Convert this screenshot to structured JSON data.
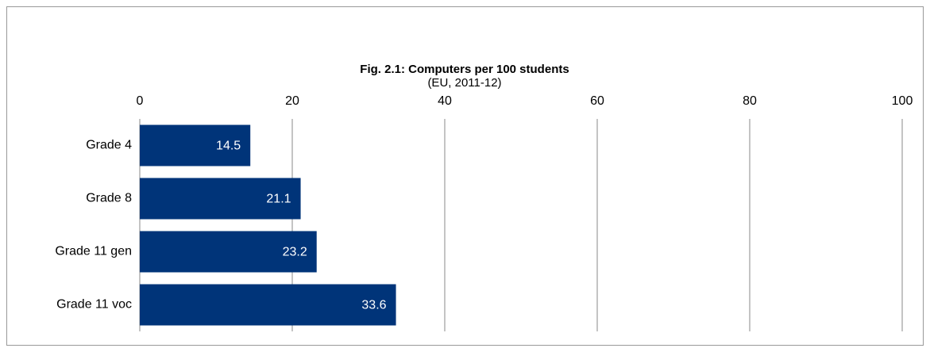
{
  "chart_data": {
    "type": "bar",
    "title": "Fig. 2.1: Computers per 100 students",
    "subtitle": "(EU, 2011-12)",
    "categories": [
      "Grade 4",
      "Grade 8",
      "Grade 11 gen",
      "Grade 11 voc"
    ],
    "values": [
      14.5,
      21.1,
      23.2,
      33.6
    ],
    "color": "#003479",
    "xlim": [
      0,
      100
    ],
    "xticks": [
      0,
      20,
      40,
      60,
      80,
      100
    ],
    "grid": true
  }
}
